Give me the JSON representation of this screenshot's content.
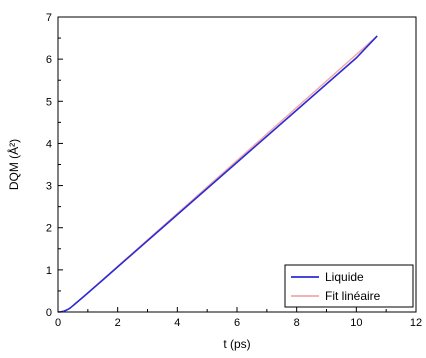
{
  "chart_data": {
    "type": "line",
    "title": "",
    "xlabel": "t (ps)",
    "ylabel": "DQM (Å²)",
    "xlim": [
      0,
      12
    ],
    "ylim": [
      0,
      7
    ],
    "xticks": [
      "0",
      "2",
      "4",
      "6",
      "8",
      "10",
      "12"
    ],
    "yticks": [
      "0",
      "1",
      "2",
      "3",
      "4",
      "5",
      "6",
      "7"
    ],
    "grid": false,
    "legend_position": "bottom-right",
    "series": [
      {
        "name": "Liquide",
        "color": "#2b2bd6",
        "x": [
          0,
          0.1,
          0.2,
          0.3,
          0.4,
          0.5,
          0.6,
          0.7,
          0.8,
          1.0,
          1.5,
          2,
          3,
          4,
          5,
          6,
          7,
          8,
          9,
          10,
          10.7
        ],
        "y": [
          0,
          0.005,
          0.02,
          0.05,
          0.09,
          0.15,
          0.21,
          0.27,
          0.33,
          0.45,
          0.76,
          1.07,
          1.69,
          2.31,
          2.93,
          3.55,
          4.17,
          4.79,
          5.41,
          6.03,
          6.55
        ]
      },
      {
        "name": "Fit linéaire",
        "color": "#f2a7a7",
        "x": [
          0.5,
          10.7
        ],
        "y": [
          0.14,
          6.55
        ]
      }
    ]
  }
}
